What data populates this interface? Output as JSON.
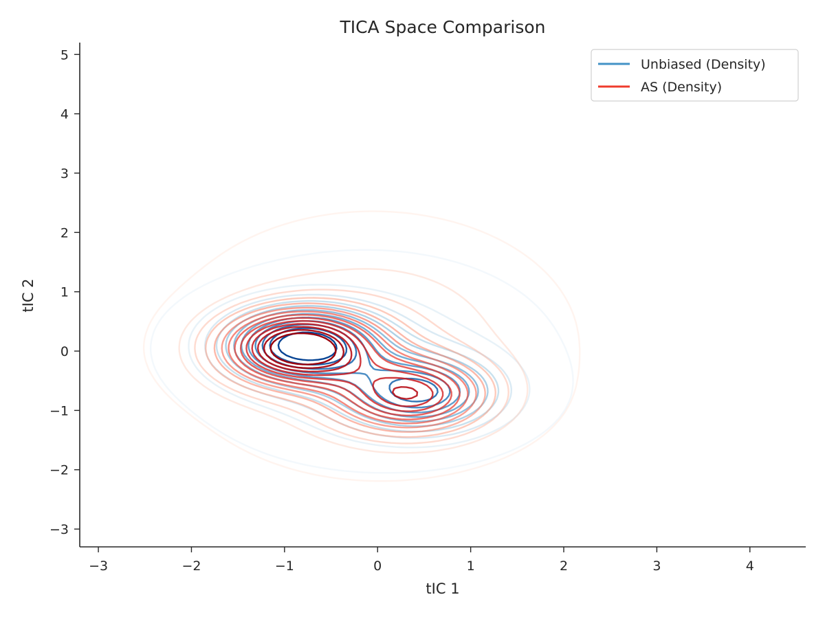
{
  "chart_data": {
    "type": "contour",
    "title": "TICA Space Comparison",
    "xlabel": "tIC 1",
    "ylabel": "tIC 2",
    "xlim": [
      -3.2,
      4.6
    ],
    "ylim": [
      -3.3,
      5.2
    ],
    "xticks": [
      -3,
      -2,
      -1,
      0,
      1,
      2,
      3,
      4
    ],
    "yticks": [
      -3,
      -2,
      -1,
      0,
      1,
      2,
      3,
      4,
      5
    ],
    "xtick_labels": [
      "−3",
      "−2",
      "−1",
      "0",
      "1",
      "2",
      "3",
      "4"
    ],
    "ytick_labels": [
      "−3",
      "−2",
      "−1",
      "0",
      "1",
      "2",
      "3",
      "4",
      "5"
    ],
    "legend_position": "top-right",
    "series": [
      {
        "name": "Unbiased (Density)",
        "colormap": "Blues",
        "legend_color": "#4292c6",
        "peaks": [
          {
            "x": -0.8,
            "y": 0.1,
            "height": 1.0
          },
          {
            "x": 0.45,
            "y": -0.7,
            "height": 0.75
          }
        ],
        "extent_x": [
          -2.4,
          2.2
        ],
        "extent_y": [
          -2.2,
          1.9
        ]
      },
      {
        "name": "AS (Density)",
        "colormap": "Reds",
        "legend_color": "#ef3b2c",
        "peaks": [
          {
            "x": -0.85,
            "y": 0.05,
            "height": 1.0
          },
          {
            "x": 0.35,
            "y": -0.75,
            "height": 0.7
          }
        ],
        "extent_x": [
          -2.5,
          2.4
        ],
        "extent_y": [
          -2.4,
          2.6
        ]
      }
    ],
    "grid": false
  }
}
